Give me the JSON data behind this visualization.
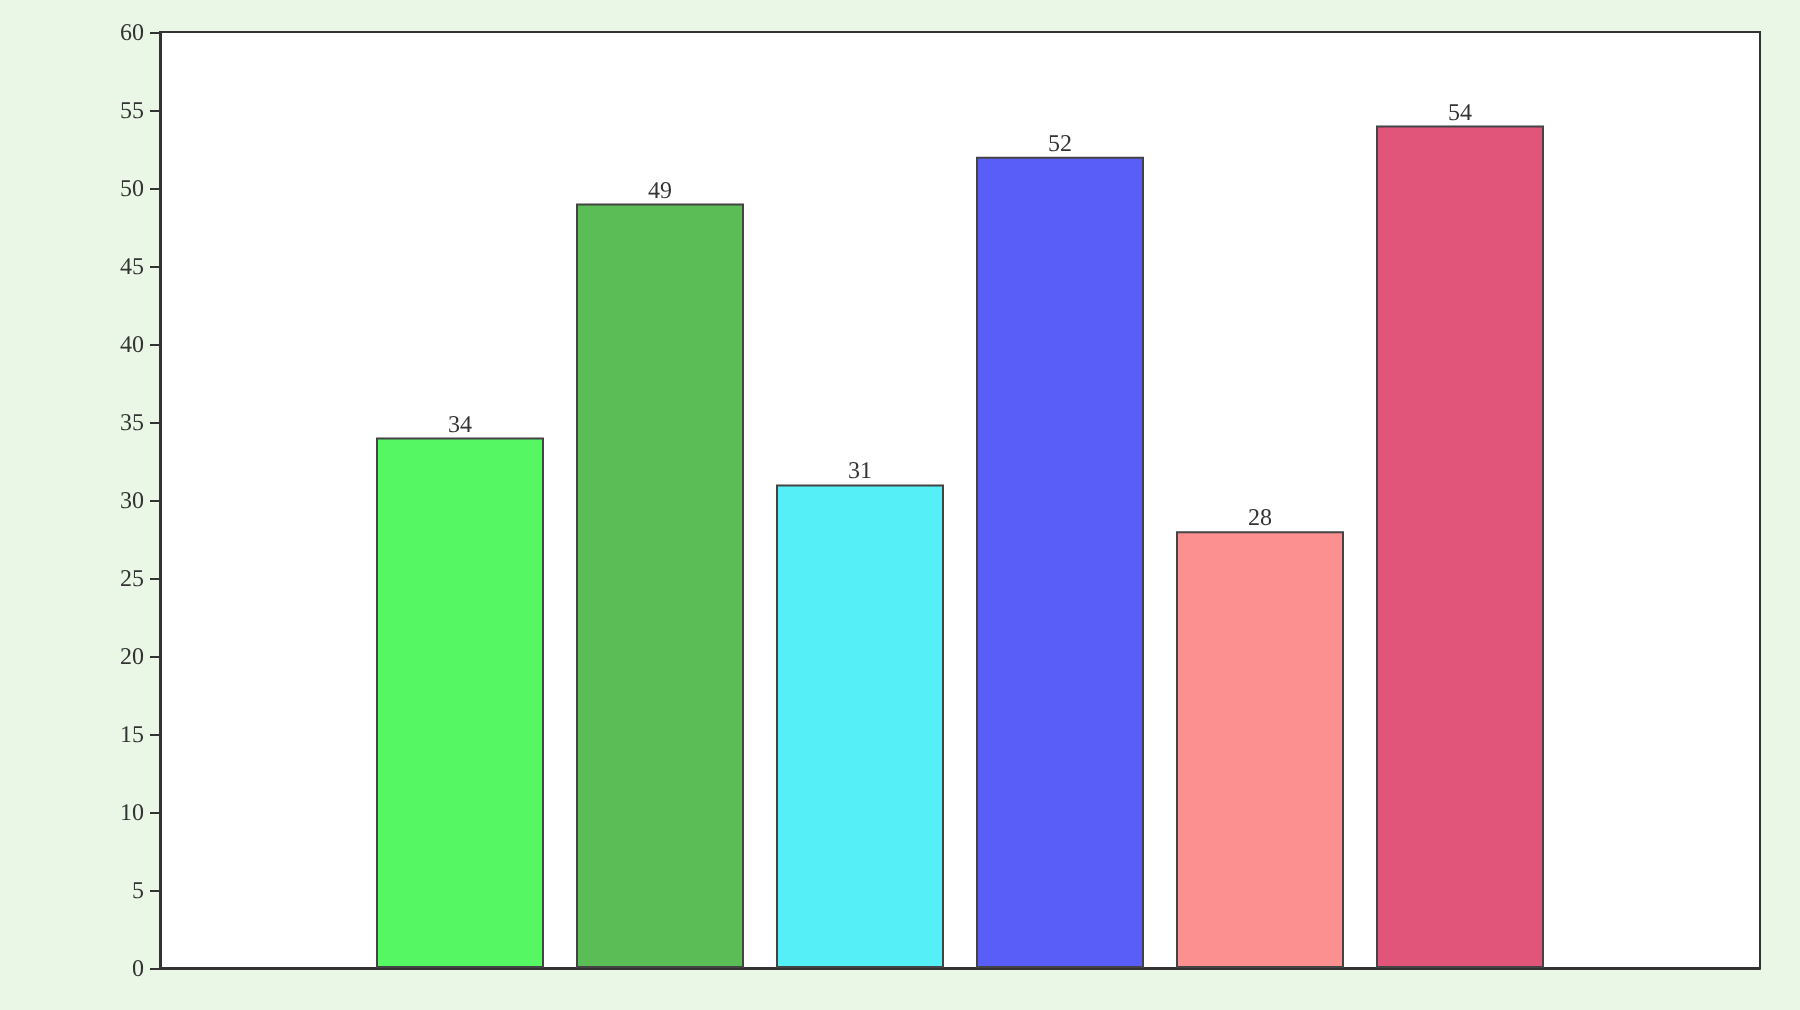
{
  "chart_data": {
    "type": "bar",
    "categories": [
      null,
      null,
      null,
      null,
      null,
      null,
      null,
      null
    ],
    "values": [
      null,
      34,
      49,
      31,
      52,
      28,
      54,
      null
    ],
    "colors": [
      null,
      "#55f763",
      "#5abd55",
      "#55f0f7",
      "#585ef7",
      "#fc8f8f",
      "#e2557a",
      null
    ],
    "ylim": [
      0,
      60
    ],
    "yticks": [
      0,
      5,
      10,
      15,
      20,
      25,
      30,
      35,
      40,
      45,
      50,
      55,
      60
    ],
    "grid": false,
    "data_labels": true
  }
}
